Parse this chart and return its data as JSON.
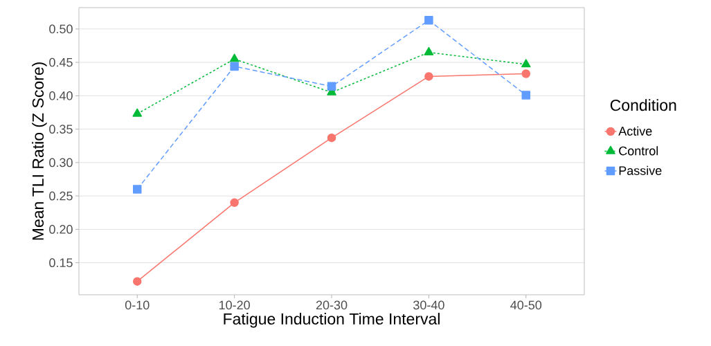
{
  "chart_data": {
    "type": "line",
    "xlabel": "Fatigue Induction Time Interval",
    "ylabel": "Mean TLI Ratio (Z Score)",
    "legend_title": "Condition",
    "categories": [
      "0-10",
      "10-20",
      "20-30",
      "30-40",
      "40-50"
    ],
    "series": [
      {
        "name": "Active",
        "color": "#f8766d",
        "marker": "circle",
        "line_style": "solid",
        "values": [
          0.122,
          0.24,
          0.337,
          0.429,
          0.433
        ]
      },
      {
        "name": "Control",
        "color": "#00ba38",
        "marker": "triangle",
        "line_style": "dotted",
        "values": [
          0.373,
          0.455,
          0.405,
          0.465,
          0.447
        ]
      },
      {
        "name": "Passive",
        "color": "#619cff",
        "marker": "square",
        "line_style": "dashed",
        "values": [
          0.26,
          0.444,
          0.414,
          0.513,
          0.401
        ]
      }
    ],
    "ylim": [
      0.102,
      0.532
    ],
    "yticks": [
      {
        "value": 0.15,
        "label": "0.15"
      },
      {
        "value": 0.2,
        "label": "0.20"
      },
      {
        "value": 0.25,
        "label": "0.25"
      },
      {
        "value": 0.3,
        "label": "0.30"
      },
      {
        "value": 0.35,
        "label": "0.35"
      },
      {
        "value": 0.4,
        "label": "0.40"
      },
      {
        "value": 0.45,
        "label": "0.45"
      },
      {
        "value": 0.5,
        "label": "0.50"
      }
    ],
    "grid": "y",
    "legend": "right"
  }
}
